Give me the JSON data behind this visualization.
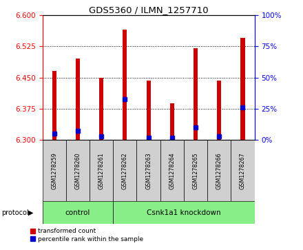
{
  "title": "GDS5360 / ILMN_1257710",
  "samples": [
    "GSM1278259",
    "GSM1278260",
    "GSM1278261",
    "GSM1278262",
    "GSM1278263",
    "GSM1278264",
    "GSM1278265",
    "GSM1278266",
    "GSM1278267"
  ],
  "red_values": [
    6.465,
    6.495,
    6.45,
    6.565,
    6.443,
    6.388,
    6.52,
    6.443,
    6.545
  ],
  "blue_values": [
    6.315,
    6.322,
    6.308,
    6.398,
    6.305,
    6.305,
    6.33,
    6.308,
    6.378
  ],
  "y_min": 6.3,
  "y_max": 6.6,
  "y_ticks": [
    6.3,
    6.375,
    6.45,
    6.525,
    6.6
  ],
  "right_ticks": [
    0,
    25,
    50,
    75,
    100
  ],
  "bar_color": "#cc0000",
  "blue_color": "#0000cc",
  "protocol_groups": [
    {
      "label": "control",
      "start": 0,
      "end": 3
    },
    {
      "label": "Csnk1a1 knockdown",
      "start": 3,
      "end": 9
    }
  ],
  "protocol_group_color": "#88ee88",
  "bar_width": 0.18,
  "blue_marker_size": 4,
  "sample_box_color": "#d0d0d0",
  "legend_labels": [
    "transformed count",
    "percentile rank within the sample"
  ]
}
